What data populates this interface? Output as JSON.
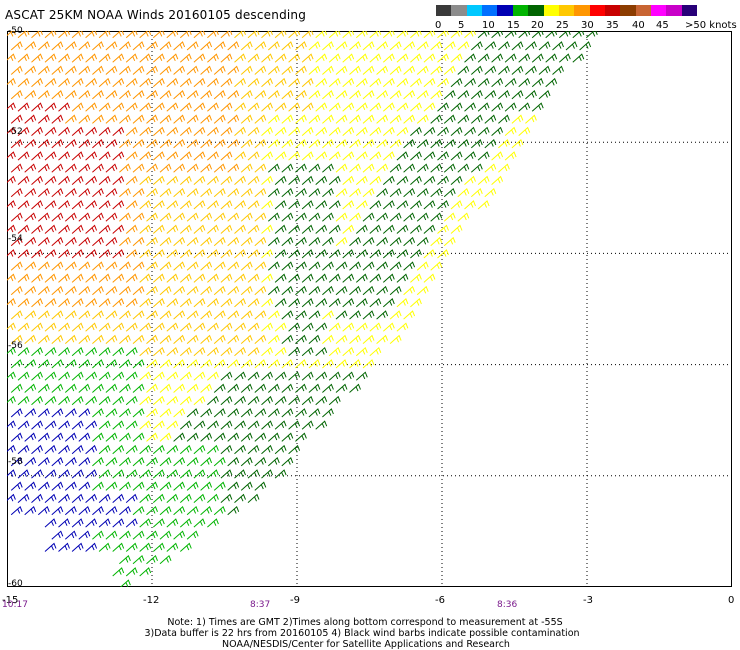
{
  "title": "ASCAT 25KM NOAA Winds 20160105 descending",
  "colorbar": {
    "labels": [
      "0",
      "5",
      "10",
      "15",
      "20",
      "25",
      "30",
      "35",
      "40",
      "45",
      ">50 knots"
    ],
    "colors": [
      "#3a3a3a",
      "#8c8c8c",
      "#00c8ff",
      "#0070ff",
      "#0000b4",
      "#00b400",
      "#006400",
      "#ffff00",
      "#ffc800",
      "#ff9600",
      "#ff0000",
      "#c80000",
      "#8c3c00",
      "#c86432",
      "#ff00ff",
      "#c800c8",
      "#280078"
    ]
  },
  "axes": {
    "lat_labels": [
      "-50",
      "-52",
      "-54",
      "-56",
      "-58",
      "-60"
    ],
    "lon_labels": [
      "-15",
      "-12",
      "-9",
      "-6",
      "-3",
      "0"
    ],
    "time_labels": [
      "10:17",
      "8:37",
      "8:36"
    ]
  },
  "notes": [
    "Note: 1) Times are GMT 2)Times along bottom correspond to measurement at -55S",
    "3)Data buffer is 22 hrs from 20160105 4) Black wind barbs indicate possible contamination",
    "NOAA/NESDIS/Center for Satellite Applications and Research"
  ],
  "map_data": {
    "type": "wind_barb_swath",
    "projection": "equirectangular",
    "lon_range": [
      -15,
      0
    ],
    "lat_range": [
      -60,
      -50
    ],
    "gridlines": true,
    "wind_units": "knots",
    "swath_edge": [
      [
        -2.8,
        -50
      ],
      [
        -4.7,
        -52.5
      ],
      [
        -6.3,
        -54.8
      ],
      [
        -7.8,
        -56.5
      ],
      [
        -9.8,
        -58.4
      ],
      [
        -12.5,
        -60
      ]
    ],
    "colored_zones": [
      {
        "color": "#c80000",
        "speed_knots": 32,
        "area": "west -52 to -54"
      },
      {
        "color": "#ff9600",
        "speed_knots": 28,
        "area": "northwest"
      },
      {
        "color": "#ffc800",
        "speed_knots": 25,
        "area": "west and north-central"
      },
      {
        "color": "#ffff00",
        "speed_knots": 22,
        "area": "central swath"
      },
      {
        "color": "#006400",
        "speed_knots": 17,
        "area": "east swath edge and south-central"
      },
      {
        "color": "#00b400",
        "speed_knots": 15,
        "area": "southwest"
      },
      {
        "color": "#0000b4",
        "speed_knots": 12,
        "area": "far southwest"
      }
    ]
  }
}
